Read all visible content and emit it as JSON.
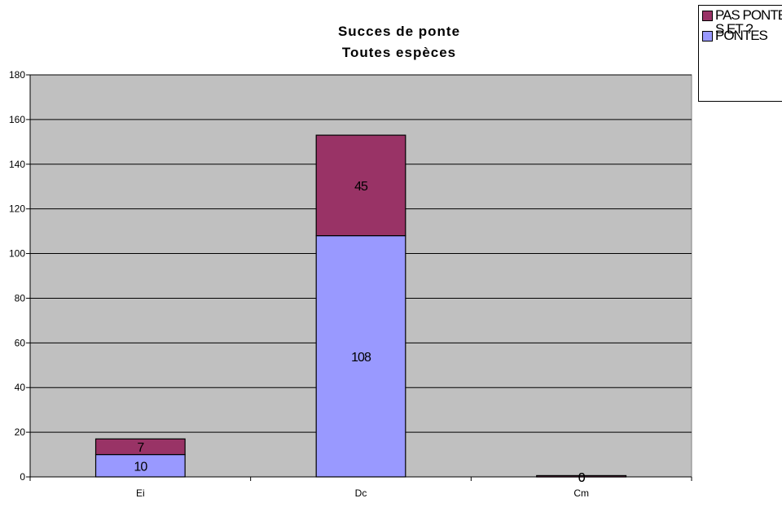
{
  "chart_data": {
    "type": "bar",
    "stacked": true,
    "title": "Succes de ponte",
    "subtitle": "Toutes espèces",
    "categories": [
      "Ei",
      "Dc",
      "Cm"
    ],
    "series": [
      {
        "name": "PONTES",
        "values": [
          10,
          108,
          0
        ],
        "color": "#9999ff"
      },
      {
        "name": "PAS PONTES ET ?",
        "values": [
          7,
          45,
          0
        ],
        "color": "#993366"
      }
    ],
    "data_labels": {
      "PONTES": [
        "10",
        "108",
        "0"
      ],
      "PAS PONTES ET ?": [
        "7",
        "45",
        "0"
      ]
    },
    "ylim": [
      0,
      180
    ],
    "yticks": [
      0,
      20,
      40,
      60,
      80,
      100,
      120,
      140,
      160,
      180
    ],
    "xlabel": "",
    "ylabel": "",
    "grid": true,
    "plot_background": "#c0c0c0",
    "legend_position": "top-right"
  }
}
